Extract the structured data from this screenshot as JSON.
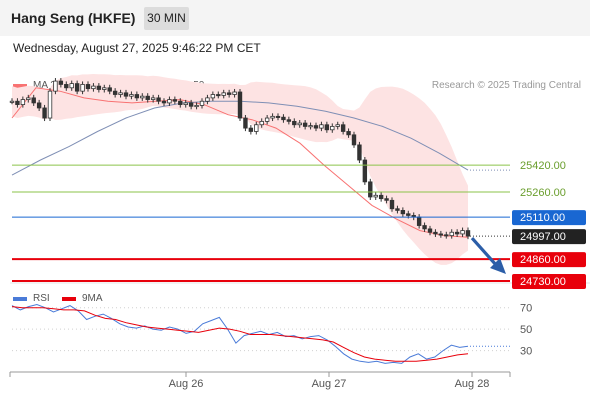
{
  "header": {
    "title": "Hang Seng (HKFE)",
    "timeframe": "30 MIN"
  },
  "date_text": "Wednesday, August 27, 2025 9:46:22 PM CET",
  "legend": {
    "ma20": "MA 20 + Bollinger Bands",
    "ma50": "MA 50",
    "rsi": "RSI",
    "rsi_ma": "9MA"
  },
  "credit": "Research © 2025 Trading Central",
  "colors": {
    "bollinger": "#f87272",
    "ma50": "#2c5ea8",
    "support": "#e8000b",
    "resistance": "#8bc34a",
    "pivot": "#1967d2",
    "last": "#222222",
    "arrow": "#2c5ea8",
    "rsi": "#4a7bd8",
    "rsi_ma": "#e8000b"
  },
  "chart_data": [
    {
      "type": "candlestick",
      "title": "Hang Seng (HKFE)",
      "x_tick_labels": [
        "Aug 26",
        "Aug 27",
        "Aug 28"
      ],
      "ylim": [
        24700,
        25980
      ],
      "levels": [
        {
          "value": 25420,
          "label": "25420.00",
          "kind": "resistance"
        },
        {
          "value": 25260,
          "label": "25260.00",
          "kind": "resistance"
        },
        {
          "value": 25110,
          "label": "25110.00",
          "kind": "pivot"
        },
        {
          "value": 24997,
          "label": "24997.00",
          "kind": "last"
        },
        {
          "value": 24860,
          "label": "24860.00",
          "kind": "support"
        },
        {
          "value": 24730,
          "label": "24730.00",
          "kind": "support"
        }
      ],
      "close_series": [
        25800,
        25780,
        25810,
        25820,
        25790,
        25760,
        25700,
        25860,
        25920,
        25900,
        25880,
        25905,
        25860,
        25900,
        25875,
        25890,
        25870,
        25880,
        25860,
        25840,
        25850,
        25830,
        25840,
        25820,
        25830,
        25810,
        25820,
        25800,
        25790,
        25810,
        25800,
        25780,
        25790,
        25770,
        25775,
        25800,
        25820,
        25840,
        25835,
        25850,
        25840,
        25855,
        25700,
        25640,
        25620,
        25660,
        25680,
        25700,
        25710,
        25705,
        25690,
        25680,
        25660,
        25670,
        25650,
        25655,
        25640,
        25660,
        25630,
        25650,
        25660,
        25620,
        25600,
        25540,
        25450,
        25320,
        25230,
        25240,
        25220,
        25210,
        25160,
        25150,
        25130,
        25120,
        25110,
        25060,
        25040,
        25020,
        25010,
        25005,
        25000,
        25020,
        25010,
        25030,
        24997
      ],
      "ma20": [
        25700,
        25880,
        25860,
        25820,
        25800,
        25790,
        25800,
        25810,
        25780,
        25720,
        25690,
        25640,
        25550,
        25420,
        25300,
        25180,
        25100,
        25030,
        25000,
        24990
      ],
      "ma50": [
        25360,
        25450,
        25530,
        25620,
        25700,
        25760,
        25790,
        25800,
        25800,
        25790,
        25770,
        25740,
        25700,
        25650,
        25580,
        25490,
        25390
      ]
    },
    {
      "type": "line",
      "title": "RSI",
      "x_tick_labels": [
        "Aug 26",
        "Aug 27",
        "Aug 28"
      ],
      "ylim": [
        10,
        80
      ],
      "y_ticks": [
        70,
        50,
        30
      ],
      "series": [
        {
          "name": "RSI",
          "values": [
            72,
            68,
            71,
            73,
            70,
            66,
            69,
            72,
            67,
            59,
            62,
            64,
            60,
            55,
            52,
            51,
            53,
            50,
            49,
            52,
            50,
            46,
            48,
            55,
            58,
            61,
            50,
            37,
            44,
            46,
            48,
            45,
            47,
            43,
            44,
            41,
            43,
            44,
            40,
            34,
            27,
            22,
            20,
            19,
            20,
            18,
            19,
            18,
            24,
            27,
            22,
            24,
            30,
            35,
            33,
            34
          ]
        },
        {
          "name": "9MA",
          "values": [
            71,
            70,
            70,
            70,
            69,
            68,
            68,
            67,
            63,
            60,
            59,
            56,
            54,
            52,
            51,
            50,
            49,
            48,
            47,
            49,
            51,
            50,
            48,
            45,
            45,
            45,
            44,
            43,
            42,
            41,
            40,
            38,
            33,
            28,
            24,
            22,
            21,
            20,
            20,
            20,
            21,
            22,
            24,
            26,
            27
          ]
        }
      ]
    }
  ]
}
